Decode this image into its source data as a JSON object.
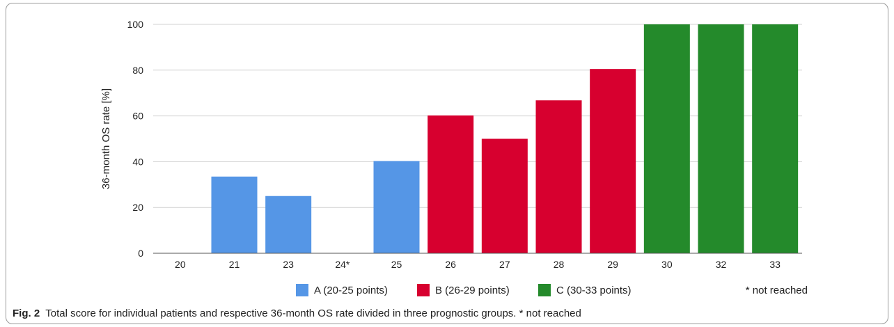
{
  "chart_data": {
    "type": "bar",
    "categories": [
      "20",
      "21",
      "23",
      "24*",
      "25",
      "26",
      "27",
      "28",
      "29",
      "30",
      "32",
      "33"
    ],
    "values": [
      0,
      33.5,
      25,
      0,
      40.3,
      60.2,
      50,
      66.8,
      80.5,
      100,
      100,
      100
    ],
    "groups": [
      "A",
      "A",
      "A",
      "A",
      "A",
      "B",
      "B",
      "B",
      "B",
      "C",
      "C",
      "C"
    ],
    "series": [
      {
        "key": "A",
        "name": "A (20-25 points)",
        "color": "#5596e6"
      },
      {
        "key": "B",
        "name": "B (26-29 points)",
        "color": "#d7002f"
      },
      {
        "key": "C",
        "name": "C (30-33 points)",
        "color": "#248a2b"
      }
    ],
    "legend_note": "* not reached",
    "ylabel": "36-month OS rate  [%]",
    "xlabel": "",
    "ylim": [
      0,
      100
    ],
    "yticks": [
      0,
      20,
      40,
      60,
      80,
      100
    ],
    "grid": true,
    "legend_position": "bottom"
  },
  "caption": {
    "figure_label": "Fig. 2",
    "text": "Total score for individual patients and respective 36-month OS rate divided in three prognostic groups. * not reached"
  }
}
